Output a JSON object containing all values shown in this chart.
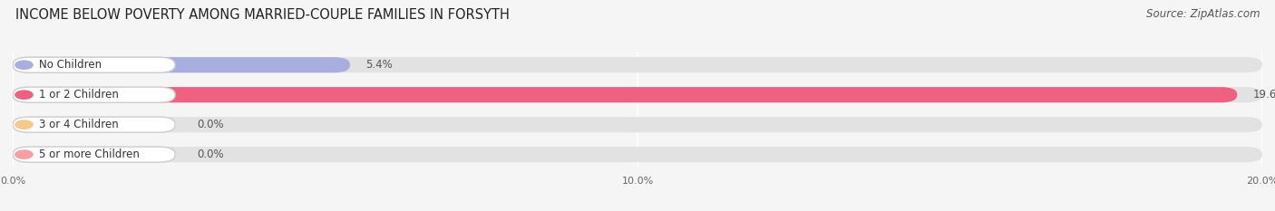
{
  "title": "INCOME BELOW POVERTY AMONG MARRIED-COUPLE FAMILIES IN FORSYTH",
  "source": "Source: ZipAtlas.com",
  "categories": [
    "No Children",
    "1 or 2 Children",
    "3 or 4 Children",
    "5 or more Children"
  ],
  "values": [
    5.4,
    19.6,
    0.0,
    0.0
  ],
  "bar_colors": [
    "#a8aedd",
    "#f06080",
    "#f5c98a",
    "#f5a0a0"
  ],
  "background_color": "#f5f5f5",
  "bar_bg_color": "#e2e2e2",
  "xlim": [
    0,
    20.0
  ],
  "xticks": [
    0.0,
    10.0,
    20.0
  ],
  "xtick_labels": [
    "0.0%",
    "10.0%",
    "20.0%"
  ],
  "title_fontsize": 10.5,
  "source_fontsize": 8.5,
  "label_fontsize": 8.5,
  "value_fontsize": 8.5
}
